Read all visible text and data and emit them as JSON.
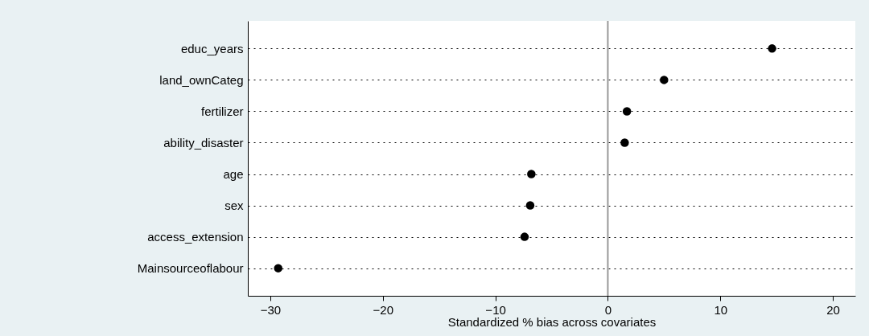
{
  "chart_data": {
    "type": "scatter",
    "xlabel": "Standardized % bias across covariates",
    "categories": [
      "educ_years",
      "land_ownCateg",
      "fertilizer",
      "ability_disaster",
      "age",
      "sex",
      "access_extension",
      "Mainsourceoflabour"
    ],
    "values": [
      14.6,
      5.0,
      1.7,
      1.5,
      -6.8,
      -6.9,
      -7.4,
      -29.3
    ],
    "color": "#000000",
    "orientation": "horizontal",
    "marker": "circle",
    "grid": "y",
    "xlim": [
      -32,
      22
    ],
    "xticks": [
      -30,
      -20,
      -10,
      0,
      10,
      20
    ],
    "ref_lines": [
      {
        "axis": "x",
        "value": 0,
        "color": "#999999"
      }
    ]
  }
}
